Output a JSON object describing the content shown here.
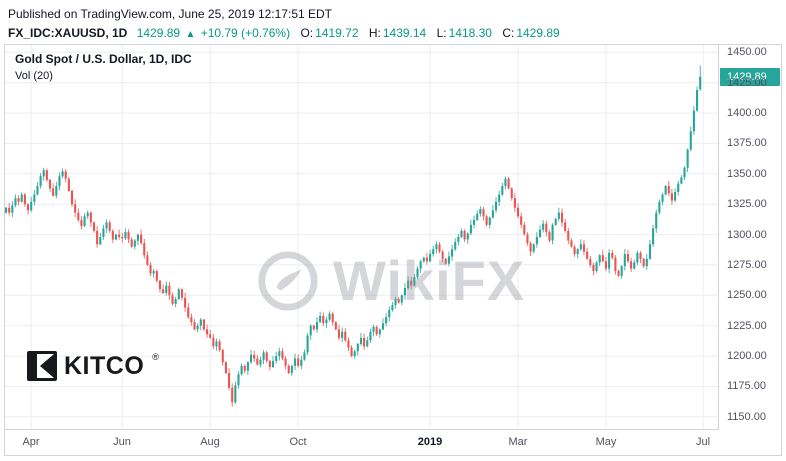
{
  "header": {
    "published": "Published on TradingView.com, June 25, 2019 12:17:51 EDT",
    "symbol": "FX_IDC:XAUUSD, 1D",
    "last": "1429.89",
    "up_arrow": "▲",
    "change": "+10.79 (+0.76%)",
    "o_label": "O:",
    "o": "1419.72",
    "h_label": "H:",
    "h": "1439.14",
    "l_label": "L:",
    "l": "1418.30",
    "c_label": "C:",
    "c": "1429.89"
  },
  "chart_data": {
    "type": "candlestick",
    "title": "Gold Spot / U.S. Dollar, 1D, IDC",
    "indicator_label": "Vol (20)",
    "watermark": "WikiFX",
    "branding": "KITCO",
    "branding_reg": "®",
    "last_price_label": "1429.89",
    "up_color": "#26a69a",
    "down_color": "#ef5350",
    "grid_color": "#eceef2",
    "ylim": [
      1140,
      1456
    ],
    "y_ticks": [
      1450,
      1425,
      1400,
      1375,
      1350,
      1325,
      1300,
      1275,
      1250,
      1225,
      1200,
      1175,
      1150
    ],
    "x_labels": [
      {
        "label": "Apr",
        "index": 8
      },
      {
        "label": "Jun",
        "index": 37
      },
      {
        "label": "Aug",
        "index": 65
      },
      {
        "label": "Oct",
        "index": 93
      },
      {
        "label": "2019",
        "index": 135,
        "year": true
      },
      {
        "label": "Mar",
        "index": 163
      },
      {
        "label": "May",
        "index": 191
      },
      {
        "label": "Jul",
        "index": 222
      }
    ],
    "closes": [
      1322,
      1318,
      1324,
      1330,
      1327,
      1333,
      1325,
      1320,
      1327,
      1333,
      1340,
      1348,
      1353,
      1345,
      1338,
      1332,
      1340,
      1348,
      1352,
      1346,
      1336,
      1325,
      1318,
      1312,
      1307,
      1315,
      1318,
      1310,
      1303,
      1292,
      1298,
      1305,
      1310,
      1303,
      1296,
      1300,
      1298,
      1297,
      1302,
      1296,
      1290,
      1295,
      1300,
      1293,
      1283,
      1275,
      1268,
      1270,
      1262,
      1255,
      1252,
      1258,
      1250,
      1243,
      1247,
      1255,
      1248,
      1240,
      1232,
      1228,
      1222,
      1225,
      1230,
      1222,
      1218,
      1215,
      1208,
      1212,
      1205,
      1195,
      1186,
      1174,
      1162,
      1176,
      1185,
      1192,
      1188,
      1195,
      1201,
      1198,
      1193,
      1197,
      1203,
      1196,
      1191,
      1196,
      1200,
      1204,
      1198,
      1192,
      1186,
      1192,
      1198,
      1192,
      1197,
      1203,
      1217,
      1225,
      1222,
      1228,
      1233,
      1227,
      1230,
      1235,
      1228,
      1222,
      1215,
      1220,
      1213,
      1207,
      1200,
      1204,
      1210,
      1215,
      1208,
      1213,
      1220,
      1224,
      1218,
      1222,
      1227,
      1232,
      1238,
      1242,
      1247,
      1244,
      1250,
      1256,
      1262,
      1258,
      1265,
      1272,
      1278,
      1281,
      1278,
      1284,
      1288,
      1292,
      1286,
      1280,
      1276,
      1282,
      1288,
      1294,
      1298,
      1303,
      1296,
      1301,
      1308,
      1312,
      1317,
      1321,
      1315,
      1308,
      1314,
      1320,
      1327,
      1333,
      1340,
      1346,
      1338,
      1330,
      1322,
      1315,
      1308,
      1300,
      1293,
      1286,
      1292,
      1298,
      1304,
      1309,
      1302,
      1295,
      1308,
      1313,
      1318,
      1310,
      1303,
      1295,
      1290,
      1284,
      1288,
      1292,
      1286,
      1280,
      1275,
      1270,
      1277,
      1283,
      1278,
      1272,
      1285,
      1281,
      1270,
      1266,
      1274,
      1284,
      1278,
      1272,
      1277,
      1285,
      1280,
      1274,
      1280,
      1292,
      1305,
      1318,
      1327,
      1333,
      1340,
      1334,
      1328,
      1335,
      1342,
      1347,
      1355,
      1370,
      1385,
      1402,
      1419,
      1429.89
    ],
    "last_candle": {
      "open": 1419.72,
      "high": 1439.14,
      "low": 1418.3,
      "close": 1429.89
    }
  }
}
